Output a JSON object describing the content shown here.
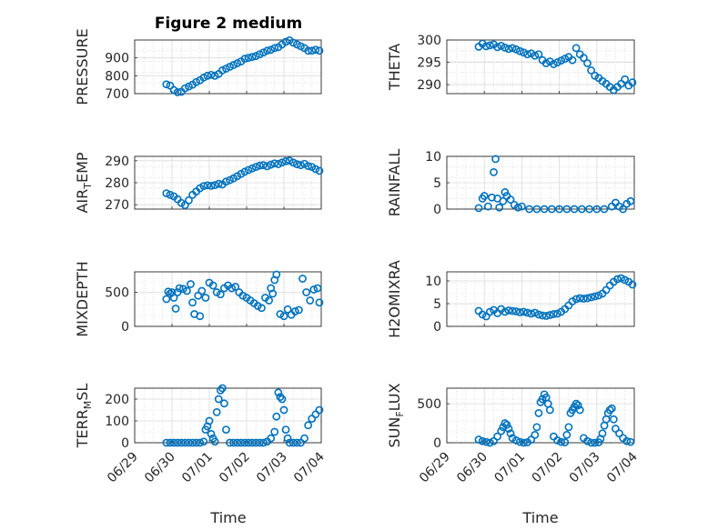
{
  "figure": {
    "title": "Figure 2 medium",
    "xlabel": "Time"
  },
  "colors": {
    "marker": "#0072BD",
    "grid": "#cfcfcf",
    "axis": "#262626"
  },
  "chart_data": [
    {
      "type": "scatter",
      "ylabel": "PRESSURE",
      "ylabel_sub": "",
      "ylabel_suffix": "",
      "ylim": [
        700,
        1000
      ],
      "yticks": [
        700,
        800,
        900
      ],
      "xlim": [
        0,
        5
      ],
      "xticks": [],
      "xticklabels": [],
      "x": [
        0.85,
        0.95,
        1.05,
        1.15,
        1.25,
        1.35,
        1.45,
        1.55,
        1.65,
        1.75,
        1.85,
        1.95,
        2.05,
        2.15,
        2.25,
        2.35,
        2.45,
        2.55,
        2.65,
        2.75,
        2.85,
        2.95,
        3.05,
        3.15,
        3.25,
        3.35,
        3.45,
        3.55,
        3.65,
        3.75,
        3.85,
        3.95,
        4.05,
        4.15,
        4.25,
        4.35,
        4.45,
        4.55,
        4.65,
        4.75,
        4.85,
        4.95
      ],
      "y": [
        752,
        745,
        720,
        708,
        710,
        730,
        740,
        750,
        765,
        775,
        790,
        800,
        805,
        800,
        810,
        830,
        840,
        850,
        860,
        870,
        880,
        895,
        900,
        905,
        910,
        920,
        930,
        940,
        945,
        955,
        960,
        975,
        990,
        998,
        985,
        975,
        965,
        955,
        940,
        940,
        945,
        940
      ]
    },
    {
      "type": "scatter",
      "ylabel": "THETA",
      "ylabel_sub": "",
      "ylabel_suffix": "",
      "ylim": [
        288,
        300
      ],
      "yticks": [
        290,
        295,
        300
      ],
      "xlim": [
        0,
        5
      ],
      "xticks": [],
      "xticklabels": [],
      "x": [
        0.85,
        0.95,
        1.05,
        1.15,
        1.25,
        1.35,
        1.45,
        1.55,
        1.65,
        1.75,
        1.85,
        1.95,
        2.05,
        2.15,
        2.25,
        2.35,
        2.45,
        2.55,
        2.65,
        2.75,
        2.85,
        2.95,
        3.05,
        3.15,
        3.25,
        3.35,
        3.45,
        3.55,
        3.65,
        3.75,
        3.85,
        3.95,
        4.05,
        4.15,
        4.25,
        4.35,
        4.45,
        4.55,
        4.65,
        4.75,
        4.85,
        4.95
      ],
      "y": [
        298.5,
        299.2,
        298.6,
        298.8,
        299.0,
        298.4,
        298.7,
        298.3,
        298.0,
        298.2,
        297.9,
        297.5,
        297.2,
        296.8,
        297.0,
        296.5,
        296.8,
        295.5,
        294.8,
        295.2,
        294.6,
        295.0,
        295.4,
        295.8,
        296.2,
        295.5,
        298.2,
        296.8,
        296.0,
        294.8,
        293.2,
        292.0,
        291.5,
        290.8,
        290.2,
        289.5,
        288.8,
        289.5,
        290.2,
        291.2,
        289.8,
        290.5
      ]
    },
    {
      "type": "scatter",
      "ylabel": "AIR",
      "ylabel_sub": "T",
      "ylabel_suffix": "EMP",
      "ylim": [
        268,
        292
      ],
      "yticks": [
        270,
        280,
        290
      ],
      "xlim": [
        0,
        5
      ],
      "xticks": [],
      "xticklabels": [],
      "x": [
        0.85,
        0.95,
        1.05,
        1.15,
        1.25,
        1.35,
        1.45,
        1.55,
        1.65,
        1.75,
        1.85,
        1.95,
        2.05,
        2.15,
        2.25,
        2.35,
        2.45,
        2.55,
        2.65,
        2.75,
        2.85,
        2.95,
        3.05,
        3.15,
        3.25,
        3.35,
        3.45,
        3.55,
        3.65,
        3.75,
        3.85,
        3.95,
        4.05,
        4.15,
        4.25,
        4.35,
        4.45,
        4.55,
        4.65,
        4.75,
        4.85,
        4.95
      ],
      "y": [
        275.2,
        274.5,
        273.8,
        272.5,
        270.8,
        269.8,
        272.0,
        274.5,
        276.0,
        277.5,
        278.5,
        278.8,
        278.6,
        278.9,
        279.5,
        279.2,
        280.5,
        281.2,
        282.0,
        283.0,
        284.0,
        285.0,
        285.8,
        286.5,
        287.2,
        287.8,
        288.0,
        287.5,
        288.2,
        288.8,
        288.5,
        289.2,
        289.8,
        290.0,
        289.2,
        288.4,
        288.0,
        288.6,
        287.6,
        287.2,
        286.2,
        285.4
      ]
    },
    {
      "type": "scatter",
      "ylabel": "RAINFALL",
      "ylabel_sub": "",
      "ylabel_suffix": "",
      "ylim": [
        0,
        10
      ],
      "yticks": [
        0,
        5,
        10
      ],
      "xlim": [
        0,
        5
      ],
      "xticks": [],
      "xticklabels": [],
      "x": [
        0.85,
        0.95,
        1.0,
        1.1,
        1.2,
        1.25,
        1.3,
        1.35,
        1.4,
        1.5,
        1.55,
        1.6,
        1.7,
        1.8,
        1.9,
        2.0,
        2.2,
        2.4,
        2.6,
        2.8,
        3.0,
        3.2,
        3.4,
        3.6,
        3.8,
        4.0,
        4.2,
        4.4,
        4.5,
        4.6,
        4.7,
        4.8,
        4.9
      ],
      "y": [
        0.2,
        2.0,
        2.5,
        0.5,
        2.2,
        7.0,
        9.5,
        2.0,
        0.3,
        1.5,
        3.2,
        2.5,
        1.8,
        0.8,
        0.3,
        0.5,
        0.0,
        0.0,
        0.0,
        0.0,
        0.0,
        0.0,
        0.0,
        0.0,
        0.0,
        0.0,
        0.0,
        0.5,
        1.2,
        0.5,
        0.0,
        1.0,
        1.5
      ]
    },
    {
      "type": "scatter",
      "ylabel": "MIXDEPTH",
      "ylabel_sub": "",
      "ylabel_suffix": "",
      "ylim": [
        0,
        800
      ],
      "yticks": [
        0,
        500
      ],
      "xlim": [
        0,
        5
      ],
      "xticks": [],
      "xticklabels": [],
      "x": [
        0.85,
        0.9,
        0.95,
        1.0,
        1.05,
        1.1,
        1.15,
        1.2,
        1.3,
        1.4,
        1.5,
        1.55,
        1.6,
        1.7,
        1.75,
        1.8,
        1.9,
        2.0,
        2.1,
        2.2,
        2.3,
        2.4,
        2.5,
        2.6,
        2.7,
        2.8,
        2.9,
        3.0,
        3.1,
        3.2,
        3.3,
        3.4,
        3.5,
        3.6,
        3.65,
        3.7,
        3.75,
        3.8,
        3.9,
        4.0,
        4.1,
        4.2,
        4.3,
        4.4,
        4.5,
        4.6,
        4.7,
        4.8,
        4.9,
        4.95
      ],
      "y": [
        400,
        510,
        480,
        500,
        420,
        260,
        500,
        560,
        550,
        520,
        620,
        350,
        180,
        450,
        150,
        520,
        420,
        640,
        600,
        500,
        470,
        560,
        600,
        560,
        580,
        500,
        450,
        420,
        380,
        340,
        300,
        270,
        420,
        380,
        560,
        480,
        680,
        760,
        180,
        150,
        250,
        170,
        220,
        240,
        700,
        500,
        380,
        540,
        560,
        350
      ]
    },
    {
      "type": "scatter",
      "ylabel": "H2OMIXRA",
      "ylabel_sub": "",
      "ylabel_suffix": "",
      "ylim": [
        0,
        12
      ],
      "yticks": [
        0,
        5,
        10
      ],
      "xlim": [
        0,
        5
      ],
      "xticks": [],
      "xticklabels": [],
      "x": [
        0.85,
        0.95,
        1.05,
        1.15,
        1.25,
        1.35,
        1.45,
        1.55,
        1.65,
        1.75,
        1.85,
        1.95,
        2.05,
        2.15,
        2.25,
        2.35,
        2.45,
        2.55,
        2.65,
        2.75,
        2.85,
        2.95,
        3.05,
        3.15,
        3.25,
        3.35,
        3.45,
        3.55,
        3.65,
        3.75,
        3.85,
        3.95,
        4.05,
        4.15,
        4.25,
        4.35,
        4.45,
        4.55,
        4.65,
        4.75,
        4.85,
        4.95
      ],
      "y": [
        3.4,
        2.6,
        2.2,
        3.2,
        3.6,
        2.9,
        3.8,
        3.2,
        3.5,
        3.4,
        3.3,
        3.1,
        3.2,
        3.0,
        2.8,
        3.0,
        2.6,
        2.4,
        2.3,
        2.5,
        2.7,
        2.8,
        3.2,
        3.8,
        4.6,
        5.5,
        6.0,
        6.2,
        6.1,
        6.2,
        6.4,
        6.6,
        6.8,
        7.2,
        8.0,
        9.0,
        9.8,
        10.4,
        10.6,
        10.2,
        9.8,
        9.2
      ]
    },
    {
      "type": "scatter",
      "ylabel": "TERR",
      "ylabel_sub": "M",
      "ylabel_suffix": "SL",
      "ylim": [
        0,
        250
      ],
      "yticks": [
        0,
        100,
        200
      ],
      "xlim": [
        0,
        5
      ],
      "xticks": [
        0,
        1,
        2,
        3,
        4,
        5
      ],
      "xticklabels": [
        "06/29",
        "06/30",
        "07/01",
        "07/02",
        "07/03",
        "07/04"
      ],
      "x": [
        0.85,
        0.95,
        1.05,
        1.15,
        1.25,
        1.35,
        1.45,
        1.55,
        1.65,
        1.75,
        1.85,
        1.9,
        1.95,
        2.0,
        2.05,
        2.1,
        2.15,
        2.2,
        2.25,
        2.3,
        2.35,
        2.4,
        2.45,
        2.55,
        2.65,
        2.75,
        2.85,
        2.95,
        3.05,
        3.15,
        3.25,
        3.35,
        3.45,
        3.55,
        3.65,
        3.75,
        3.8,
        3.85,
        3.9,
        3.95,
        4.0,
        4.05,
        4.1,
        4.15,
        4.25,
        4.35,
        4.45,
        4.55,
        4.65,
        4.75,
        4.85,
        4.95
      ],
      "y": [
        0,
        0,
        0,
        0,
        0,
        0,
        0,
        0,
        0,
        0,
        5,
        60,
        75,
        100,
        40,
        20,
        5,
        140,
        200,
        240,
        250,
        180,
        60,
        0,
        0,
        0,
        0,
        0,
        0,
        0,
        0,
        0,
        0,
        5,
        20,
        50,
        120,
        230,
        210,
        200,
        150,
        60,
        20,
        0,
        0,
        0,
        0,
        20,
        80,
        110,
        130,
        150
      ]
    },
    {
      "type": "scatter",
      "ylabel": "SUN",
      "ylabel_sub": "F",
      "ylabel_suffix": "LUX",
      "ylim": [
        0,
        700
      ],
      "yticks": [
        0,
        500
      ],
      "xlim": [
        0,
        5
      ],
      "xticks": [
        0,
        1,
        2,
        3,
        4,
        5
      ],
      "xticklabels": [
        "06/29",
        "06/30",
        "07/01",
        "07/02",
        "07/03",
        "07/04"
      ],
      "x": [
        0.85,
        0.95,
        1.05,
        1.15,
        1.25,
        1.35,
        1.45,
        1.5,
        1.55,
        1.6,
        1.65,
        1.7,
        1.75,
        1.85,
        1.95,
        2.05,
        2.15,
        2.25,
        2.35,
        2.4,
        2.45,
        2.5,
        2.55,
        2.6,
        2.65,
        2.7,
        2.75,
        2.85,
        2.95,
        3.05,
        3.15,
        3.2,
        3.25,
        3.3,
        3.35,
        3.4,
        3.45,
        3.5,
        3.55,
        3.65,
        3.75,
        3.85,
        3.95,
        4.05,
        4.1,
        4.15,
        4.2,
        4.25,
        4.3,
        4.35,
        4.4,
        4.45,
        4.5,
        4.6,
        4.7,
        4.8,
        4.9
      ],
      "y": [
        40,
        20,
        10,
        0,
        20,
        80,
        150,
        200,
        250,
        230,
        180,
        120,
        60,
        30,
        10,
        0,
        5,
        40,
        100,
        200,
        380,
        520,
        560,
        620,
        580,
        500,
        420,
        80,
        30,
        10,
        5,
        100,
        200,
        380,
        420,
        460,
        500,
        480,
        420,
        60,
        20,
        0,
        0,
        5,
        50,
        120,
        220,
        300,
        380,
        420,
        440,
        300,
        180,
        120,
        60,
        20,
        10
      ]
    }
  ]
}
